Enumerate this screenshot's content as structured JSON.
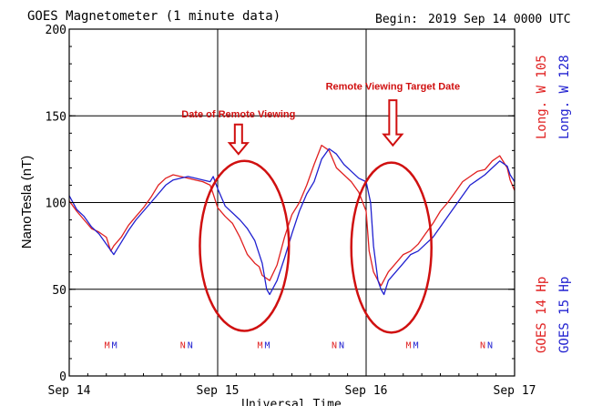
{
  "chart_data": {
    "type": "line",
    "title": "GOES Magnetometer (1 minute data)",
    "begin_label": "Begin:",
    "begin_value": "2019 Sep 14 0000 UTC",
    "ylabel": "NanoTesla (nT)",
    "xlabel": "Universal Time",
    "ylim": [
      0,
      200
    ],
    "xlim": [
      0,
      3
    ],
    "grid": true,
    "y_ticks": [
      {
        "value": 0,
        "label": "0"
      },
      {
        "value": 50,
        "label": "50"
      },
      {
        "value": 100,
        "label": "100"
      },
      {
        "value": 150,
        "label": "150"
      },
      {
        "value": 200,
        "label": "200"
      }
    ],
    "x_ticks": [
      {
        "value": 0,
        "label": "Sep 14"
      },
      {
        "value": 1,
        "label": "Sep 15"
      },
      {
        "value": 2,
        "label": "Sep 16"
      },
      {
        "value": 3,
        "label": "Sep 17"
      }
    ],
    "right_legend": [
      {
        "text": "GOES 14 Hp",
        "color": "#e02020"
      },
      {
        "text": "Long. W 105",
        "color": "#e02020"
      },
      {
        "text": "GOES 15 Hp",
        "color": "#2020d0"
      },
      {
        "text": "Long. W 128",
        "color": "#2020d0"
      }
    ],
    "markers": [
      {
        "x": 0.28,
        "text": "M"
      },
      {
        "x": 0.79,
        "text": "N"
      },
      {
        "x": 1.31,
        "text": "M"
      },
      {
        "x": 1.81,
        "text": "N"
      },
      {
        "x": 2.31,
        "text": "M"
      },
      {
        "x": 2.81,
        "text": "N"
      }
    ],
    "marker_y": 16,
    "series": [
      {
        "color": "#e02020",
        "x": [
          0,
          0.05,
          0.1,
          0.15,
          0.2,
          0.25,
          0.28,
          0.3,
          0.35,
          0.4,
          0.45,
          0.5,
          0.55,
          0.6,
          0.65,
          0.7,
          0.75,
          0.8,
          0.85,
          0.9,
          0.95,
          0.97,
          1.0,
          1.05,
          1.1,
          1.15,
          1.2,
          1.25,
          1.28,
          1.3,
          1.35,
          1.4,
          1.45,
          1.5,
          1.55,
          1.6,
          1.65,
          1.7,
          1.75,
          1.8,
          1.85,
          1.9,
          1.95,
          2.0,
          2.02,
          2.05,
          2.08,
          2.1,
          2.15,
          2.2,
          2.25,
          2.3,
          2.35,
          2.4,
          2.45,
          2.5,
          2.55,
          2.6,
          2.65,
          2.7,
          2.75,
          2.8,
          2.85,
          2.9,
          2.95,
          2.97,
          3.0
        ],
        "y": [
          101,
          95,
          90,
          85,
          83,
          80,
          72,
          75,
          80,
          87,
          92,
          97,
          103,
          110,
          114,
          116,
          115,
          114,
          113,
          112,
          110,
          105,
          97,
          92,
          88,
          80,
          70,
          65,
          63,
          58,
          55,
          64,
          80,
          93,
          100,
          110,
          122,
          133,
          130,
          120,
          116,
          112,
          106,
          95,
          72,
          60,
          55,
          52,
          60,
          65,
          70,
          72,
          76,
          82,
          88,
          95,
          100,
          106,
          112,
          115,
          118,
          119,
          124,
          127,
          120,
          113,
          107
        ]
      },
      {
        "color": "#2020d0",
        "x": [
          0,
          0.05,
          0.1,
          0.15,
          0.2,
          0.25,
          0.3,
          0.35,
          0.4,
          0.45,
          0.5,
          0.55,
          0.6,
          0.65,
          0.7,
          0.75,
          0.8,
          0.85,
          0.9,
          0.95,
          0.97,
          1.0,
          1.05,
          1.1,
          1.15,
          1.2,
          1.25,
          1.3,
          1.33,
          1.35,
          1.4,
          1.45,
          1.5,
          1.55,
          1.6,
          1.65,
          1.7,
          1.75,
          1.8,
          1.85,
          1.9,
          1.95,
          2.0,
          2.03,
          2.05,
          2.08,
          2.1,
          2.12,
          2.15,
          2.2,
          2.25,
          2.3,
          2.35,
          2.4,
          2.45,
          2.5,
          2.55,
          2.6,
          2.65,
          2.7,
          2.75,
          2.8,
          2.85,
          2.9,
          2.95,
          2.97,
          3.0
        ],
        "y": [
          104,
          96,
          92,
          86,
          82,
          76,
          70,
          77,
          84,
          90,
          95,
          100,
          105,
          110,
          113,
          114,
          115,
          114,
          113,
          112,
          115,
          108,
          98,
          94,
          90,
          85,
          78,
          65,
          50,
          47,
          55,
          68,
          82,
          95,
          105,
          112,
          125,
          131,
          128,
          122,
          118,
          114,
          112,
          100,
          75,
          55,
          50,
          47,
          55,
          60,
          65,
          70,
          72,
          76,
          80,
          86,
          92,
          98,
          104,
          110,
          113,
          116,
          120,
          124,
          121,
          116,
          112
        ]
      }
    ]
  },
  "annotations": [
    {
      "text": "Date of Remote Viewing",
      "color": "#d01010",
      "x": 1.14,
      "y": 149,
      "arrow_x": 1.14,
      "arrow_top": 145,
      "arrow_bottom": 128
    },
    {
      "text": "Remote Viewing Target Date",
      "color": "#d01010",
      "x": 2.18,
      "y": 165,
      "arrow_x": 2.18,
      "arrow_top": 159,
      "arrow_bottom": 133
    }
  ],
  "ellipses": [
    {
      "cx": 1.18,
      "cy": 75,
      "rx": 0.3,
      "ry": 49,
      "color": "#d01010"
    },
    {
      "cx": 2.17,
      "cy": 74,
      "rx": 0.27,
      "ry": 49,
      "color": "#d01010"
    }
  ]
}
